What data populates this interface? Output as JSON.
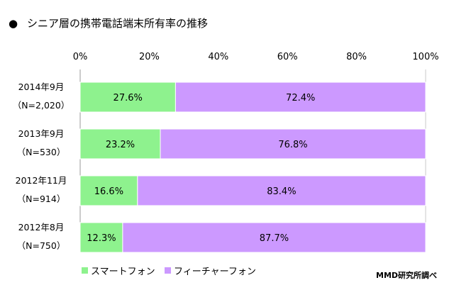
{
  "chart_data": {
    "type": "bar",
    "orientation": "horizontal",
    "stacked": true,
    "title": "シニア層の携帯電話端末所有率の推移",
    "title_bullet": "●",
    "categories": [
      {
        "label": "2014年9月",
        "sublabel": "（N=2,020）"
      },
      {
        "label": "2013年9月",
        "sublabel": "（N=530）"
      },
      {
        "label": "2012年11月",
        "sublabel": "（N=914）"
      },
      {
        "label": "2012年8月",
        "sublabel": "（N=750）"
      }
    ],
    "series": [
      {
        "name": "スマートフォン",
        "color": "#8ef28e",
        "values": [
          27.6,
          23.2,
          16.6,
          12.3
        ]
      },
      {
        "name": "フィーチャーフォン",
        "color": "#cc99ff",
        "values": [
          72.4,
          76.8,
          83.4,
          87.7
        ]
      }
    ],
    "value_suffix": "%",
    "xlim": [
      0,
      100
    ],
    "xticks": [
      "0%",
      "20%",
      "40%",
      "60%",
      "80%",
      "100%"
    ],
    "legend_position": "bottom-left",
    "source_note": "MMD研究所調べ"
  }
}
